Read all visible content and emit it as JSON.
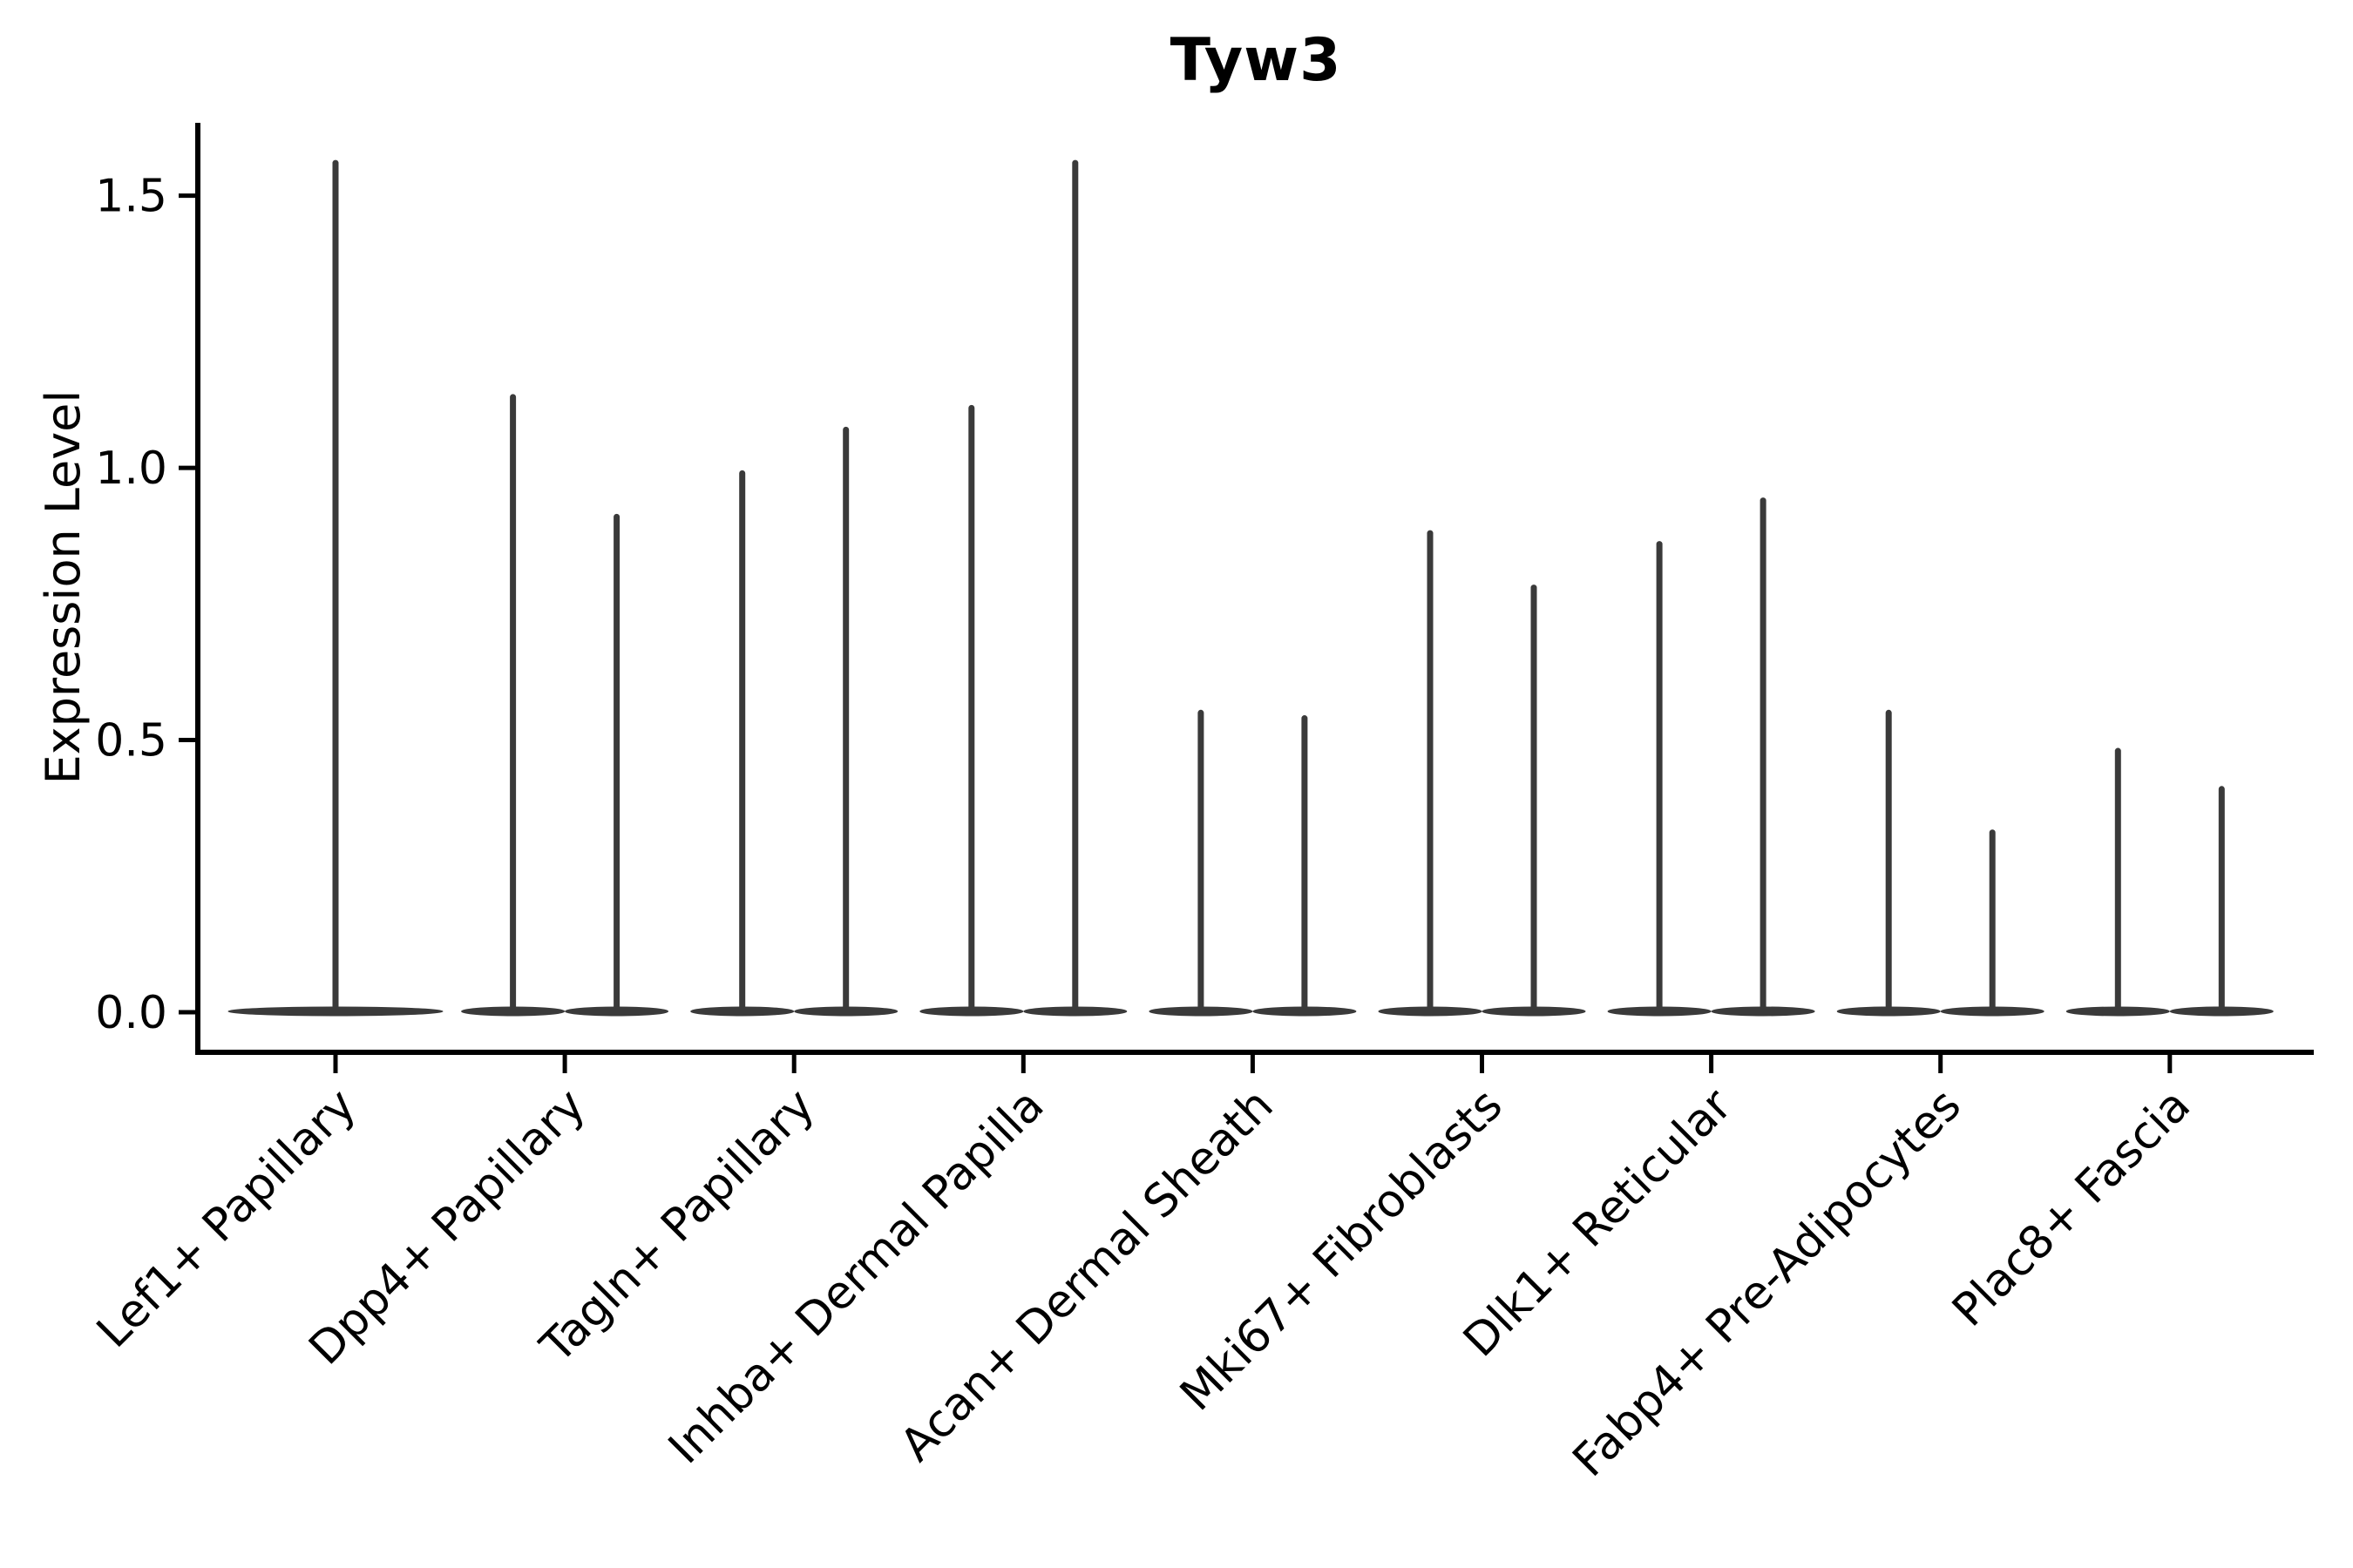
{
  "page": {
    "background": "#ffffff"
  },
  "chart_data": {
    "type": "violin",
    "title": "Tyw3",
    "ylabel": "Expression Level",
    "xlabel": "",
    "yticks": [
      0.0,
      0.5,
      1.0,
      1.5
    ],
    "ytick_labels": [
      "0.0",
      "0.5",
      "1.0",
      "1.5"
    ],
    "ylim": [
      -0.07,
      1.63
    ],
    "grid": false,
    "legend": "none",
    "categories": [
      "Lef1+ Papillary",
      "Dpp4+ Papillary",
      "Tagln+ Papillary",
      "Inhba+ Dermal Papilla",
      "Acan+ Dermal Sheath",
      "Mki67+ Fibroblasts",
      "Dlk1+ Reticular",
      "Fabp4+ Pre-Adipocytes",
      "Plac8+ Fascia"
    ],
    "violins": [
      {
        "category": "Lef1+ Papillary",
        "split_maxima": [
          1.56
        ],
        "baseline_value": 0
      },
      {
        "category": "Dpp4+ Papillary",
        "split_maxima": [
          1.13,
          0.91
        ],
        "baseline_value": 0
      },
      {
        "category": "Tagln+ Papillary",
        "split_maxima": [
          0.99,
          1.07
        ],
        "baseline_value": 0
      },
      {
        "category": "Inhba+ Dermal Papilla",
        "split_maxima": [
          1.11,
          1.56
        ],
        "baseline_value": 0
      },
      {
        "category": "Acan+ Dermal Sheath",
        "split_maxima": [
          0.55,
          0.54
        ],
        "baseline_value": 0
      },
      {
        "category": "Mki67+ Fibroblasts",
        "split_maxima": [
          0.88,
          0.78
        ],
        "baseline_value": 0
      },
      {
        "category": "Dlk1+ Reticular",
        "split_maxima": [
          0.86,
          0.94
        ],
        "baseline_value": 0
      },
      {
        "category": "Fabp4+ Pre-Adipocytes",
        "split_maxima": [
          0.55,
          0.33
        ],
        "baseline_value": 0
      },
      {
        "category": "Plac8+ Fascia",
        "split_maxima": [
          0.48,
          0.41
        ],
        "baseline_value": 0
      }
    ],
    "colors": {
      "violin": "#3a3a3a",
      "axis": "#000000",
      "text": "#000000"
    }
  }
}
